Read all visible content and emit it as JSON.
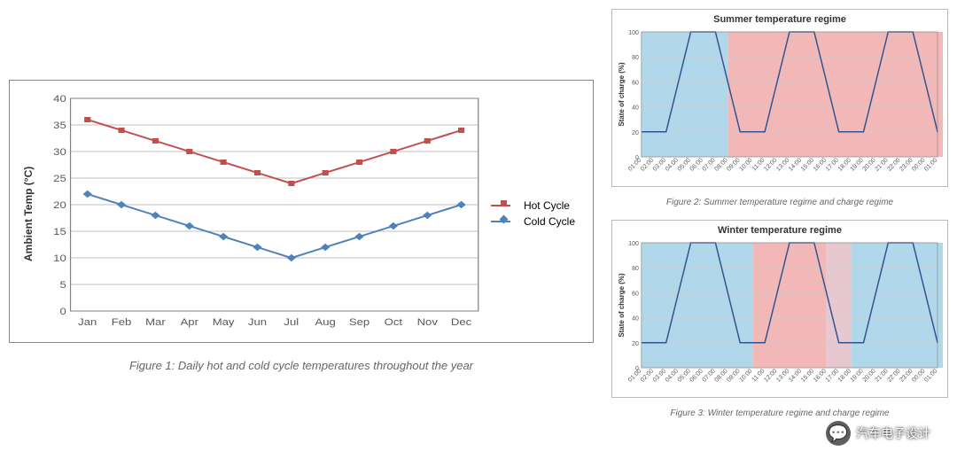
{
  "main_chart": {
    "type": "line",
    "caption": "Figure 1: Daily hot and cold cycle temperatures throughout the year",
    "ylabel": "Ambient Temp (°C)",
    "categories": [
      "Jan",
      "Feb",
      "Mar",
      "Apr",
      "May",
      "Jun",
      "Jul",
      "Aug",
      "Sep",
      "Oct",
      "Nov",
      "Dec"
    ],
    "ylim": [
      0,
      40
    ],
    "ytick_step": 5,
    "series": [
      {
        "name": "Hot Cycle",
        "color": "#c0504d",
        "marker": "square",
        "values": [
          36,
          34,
          32,
          30,
          28,
          26,
          24,
          26,
          28,
          30,
          32,
          34
        ]
      },
      {
        "name": "Cold Cycle",
        "color": "#4f81bd",
        "marker": "diamond",
        "values": [
          22,
          20,
          18,
          16,
          14,
          12,
          10,
          12,
          14,
          16,
          18,
          20
        ]
      }
    ],
    "grid_color": "#bfbfbf",
    "axis_color": "#808080",
    "tick_font_size": 11,
    "label_font_size": 12,
    "line_width": 2,
    "marker_size": 6,
    "background": "#ffffff",
    "legend_font_size": 12,
    "aspect": "660x280"
  },
  "small_charts": [
    {
      "title": "Summer temperature regime",
      "caption": "Figure 2: Summer temperature regime and charge regime",
      "ylabel": "State of charge (%)",
      "ylim": [
        0,
        100
      ],
      "ytick_step": 20,
      "soc_values": [
        20,
        20,
        100,
        100,
        20,
        20,
        100,
        100,
        20,
        20,
        100,
        100,
        20
      ],
      "x_count": 25,
      "x_tick_labels": [
        "01:00",
        "02:00",
        "03:00",
        "04:00",
        "05:00",
        "06:00",
        "07:00",
        "08:00",
        "09:00",
        "10:00",
        "11:00",
        "12:00",
        "13:00",
        "14:00",
        "15:00",
        "16:00",
        "17:00",
        "18:00",
        "19:00",
        "20:00",
        "21:00",
        "22:00",
        "23:00",
        "00:00",
        "01:00"
      ],
      "regions": [
        {
          "from": 0,
          "to": 7,
          "color": "#b0d8ea"
        },
        {
          "from": 7,
          "to": 25,
          "color": "#f2b8b8"
        }
      ],
      "line_color": "#31538f",
      "line_width": 1.5,
      "grid_color": "#cccccc",
      "tick_font_size": 7
    },
    {
      "title": "Winter temperature regime",
      "caption": "Figure 3: Winter temperature regime and charge regime",
      "ylabel": "State of charge (%)",
      "ylim": [
        0,
        100
      ],
      "ytick_step": 20,
      "soc_values": [
        20,
        20,
        100,
        100,
        20,
        20,
        100,
        100,
        20,
        20,
        100,
        100,
        20
      ],
      "x_count": 25,
      "x_tick_labels": [
        "01:00",
        "02:00",
        "03:00",
        "04:00",
        "05:00",
        "06:00",
        "07:00",
        "08:00",
        "09:00",
        "10:00",
        "11:00",
        "12:00",
        "13:00",
        "14:00",
        "15:00",
        "16:00",
        "17:00",
        "18:00",
        "19:00",
        "20:00",
        "21:00",
        "22:00",
        "23:00",
        "00:00",
        "01:00"
      ],
      "regions": [
        {
          "from": 0,
          "to": 9,
          "color": "#b0d8ea"
        },
        {
          "from": 9,
          "to": 15,
          "color": "#f2b8b8"
        },
        {
          "from": 15,
          "to": 17,
          "color": "#e8c8d0"
        },
        {
          "from": 17,
          "to": 25,
          "color": "#b0d8ea"
        }
      ],
      "line_color": "#31538f",
      "line_width": 1.5,
      "grid_color": "#cccccc",
      "tick_font_size": 7
    }
  ],
  "watermark": {
    "text": "汽车电子设计",
    "icon": "💬"
  }
}
